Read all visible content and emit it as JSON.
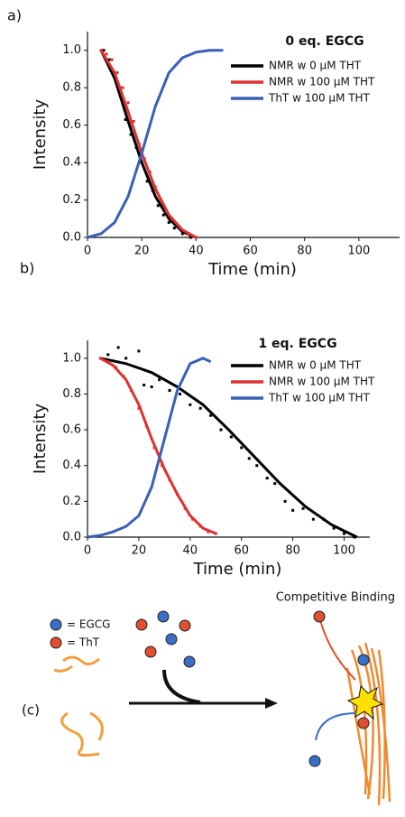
{
  "chart_data": [
    {
      "type": "line",
      "panel": "a)",
      "title": "0 eq. EGCG",
      "x_label": "Time (min)",
      "y_label": "Intensity",
      "xlim": [
        0,
        115
      ],
      "xticks": [
        0,
        20,
        40,
        60,
        80,
        100
      ],
      "ylim": [
        0,
        1.1
      ],
      "yticks": [
        {
          "value": 0,
          "label": "0.0"
        },
        0.2,
        0.4,
        0.6,
        0.8,
        {
          "value": 1,
          "label": "1.0"
        }
      ],
      "series": [
        {
          "name": "NMR w 0 μM THT",
          "color": "#000000",
          "x": [
            5,
            10,
            15,
            20,
            25,
            30,
            35,
            40
          ],
          "values": [
            1.0,
            0.85,
            0.62,
            0.4,
            0.22,
            0.1,
            0.03,
            0.0
          ],
          "points_x": [
            6,
            8,
            10,
            12,
            14,
            16,
            18,
            20,
            22,
            24,
            26,
            28,
            30,
            32,
            35,
            38
          ],
          "points_y": [
            1.0,
            0.95,
            0.88,
            0.8,
            0.63,
            0.55,
            0.48,
            0.4,
            0.3,
            0.25,
            0.17,
            0.12,
            0.08,
            0.05,
            0.02,
            0.0
          ]
        },
        {
          "name": "NMR w 100 μM THT",
          "color": "#e03030",
          "x": [
            5,
            10,
            15,
            20,
            25,
            30,
            35,
            40
          ],
          "values": [
            1.0,
            0.88,
            0.67,
            0.45,
            0.26,
            0.12,
            0.04,
            0.0
          ],
          "points_x": [
            5,
            7,
            9,
            11,
            13,
            15,
            17,
            19,
            21,
            23,
            25,
            27,
            29,
            31,
            34,
            37,
            40
          ],
          "points_y": [
            1.0,
            0.98,
            0.95,
            0.88,
            0.8,
            0.72,
            0.62,
            0.5,
            0.42,
            0.35,
            0.27,
            0.2,
            0.14,
            0.1,
            0.05,
            0.02,
            0.0
          ]
        },
        {
          "name": "ThT w 100 μM THT",
          "color": "#3a5fb8",
          "x": [
            0,
            5,
            10,
            15,
            20,
            25,
            30,
            35,
            40,
            45,
            50
          ],
          "values": [
            0,
            0.02,
            0.08,
            0.22,
            0.45,
            0.7,
            0.88,
            0.96,
            0.99,
            1.0,
            1.0
          ],
          "points_x": [],
          "points_y": []
        }
      ]
    },
    {
      "type": "line",
      "panel": "b)",
      "title": "1 eq. EGCG",
      "x_label": "Time (min)",
      "y_label": "Intensity",
      "xlim": [
        0,
        110
      ],
      "xticks": [
        0,
        20,
        40,
        60,
        80,
        100
      ],
      "ylim": [
        0,
        1.1
      ],
      "yticks": [
        {
          "value": 0,
          "label": "0.0"
        },
        0.2,
        0.4,
        0.6,
        0.8,
        {
          "value": 1,
          "label": "1.0"
        }
      ],
      "series": [
        {
          "name": "NMR w 0 μM THT",
          "color": "#000000",
          "x": [
            5,
            15,
            25,
            35,
            45,
            55,
            65,
            75,
            85,
            95,
            105
          ],
          "values": [
            1.0,
            0.97,
            0.92,
            0.84,
            0.74,
            0.6,
            0.45,
            0.3,
            0.17,
            0.07,
            0.0
          ],
          "points_x": [
            8,
            12,
            15,
            20,
            22,
            25,
            28,
            32,
            36,
            40,
            44,
            48,
            52,
            56,
            60,
            63,
            66,
            70,
            73,
            77,
            80,
            84,
            88,
            92,
            96,
            100,
            104
          ],
          "points_y": [
            1.02,
            1.06,
            1.0,
            1.04,
            0.85,
            0.84,
            0.88,
            0.82,
            0.8,
            0.74,
            0.72,
            0.68,
            0.6,
            0.56,
            0.5,
            0.44,
            0.4,
            0.33,
            0.3,
            0.2,
            0.15,
            0.16,
            0.1,
            0.1,
            0.05,
            0.02,
            0.0
          ]
        },
        {
          "name": "NMR w 100 μM THT",
          "color": "#e03030",
          "x": [
            5,
            10,
            15,
            20,
            25,
            30,
            35,
            40,
            45,
            50
          ],
          "values": [
            1.0,
            0.96,
            0.88,
            0.74,
            0.55,
            0.38,
            0.24,
            0.12,
            0.05,
            0.02
          ],
          "points_x": [
            5,
            8,
            11,
            14,
            17,
            20,
            23,
            26,
            29,
            32,
            35,
            38,
            41,
            44,
            47,
            50
          ],
          "points_y": [
            1.0,
            0.98,
            0.95,
            0.9,
            0.82,
            0.72,
            0.62,
            0.5,
            0.4,
            0.32,
            0.24,
            0.16,
            0.1,
            0.06,
            0.03,
            0.02
          ]
        },
        {
          "name": "ThT w 100 μM THT",
          "color": "#3a5fb8",
          "x": [
            0,
            5,
            10,
            15,
            20,
            25,
            30,
            35,
            40,
            45,
            48
          ],
          "values": [
            0,
            0.01,
            0.03,
            0.06,
            0.12,
            0.28,
            0.55,
            0.82,
            0.97,
            1.0,
            0.98
          ],
          "points_x": [],
          "points_y": []
        }
      ]
    }
  ],
  "panel_c": {
    "label": "(c)",
    "title": "Competitive Binding",
    "key": [
      "= EGCG",
      "= ThT"
    ]
  }
}
